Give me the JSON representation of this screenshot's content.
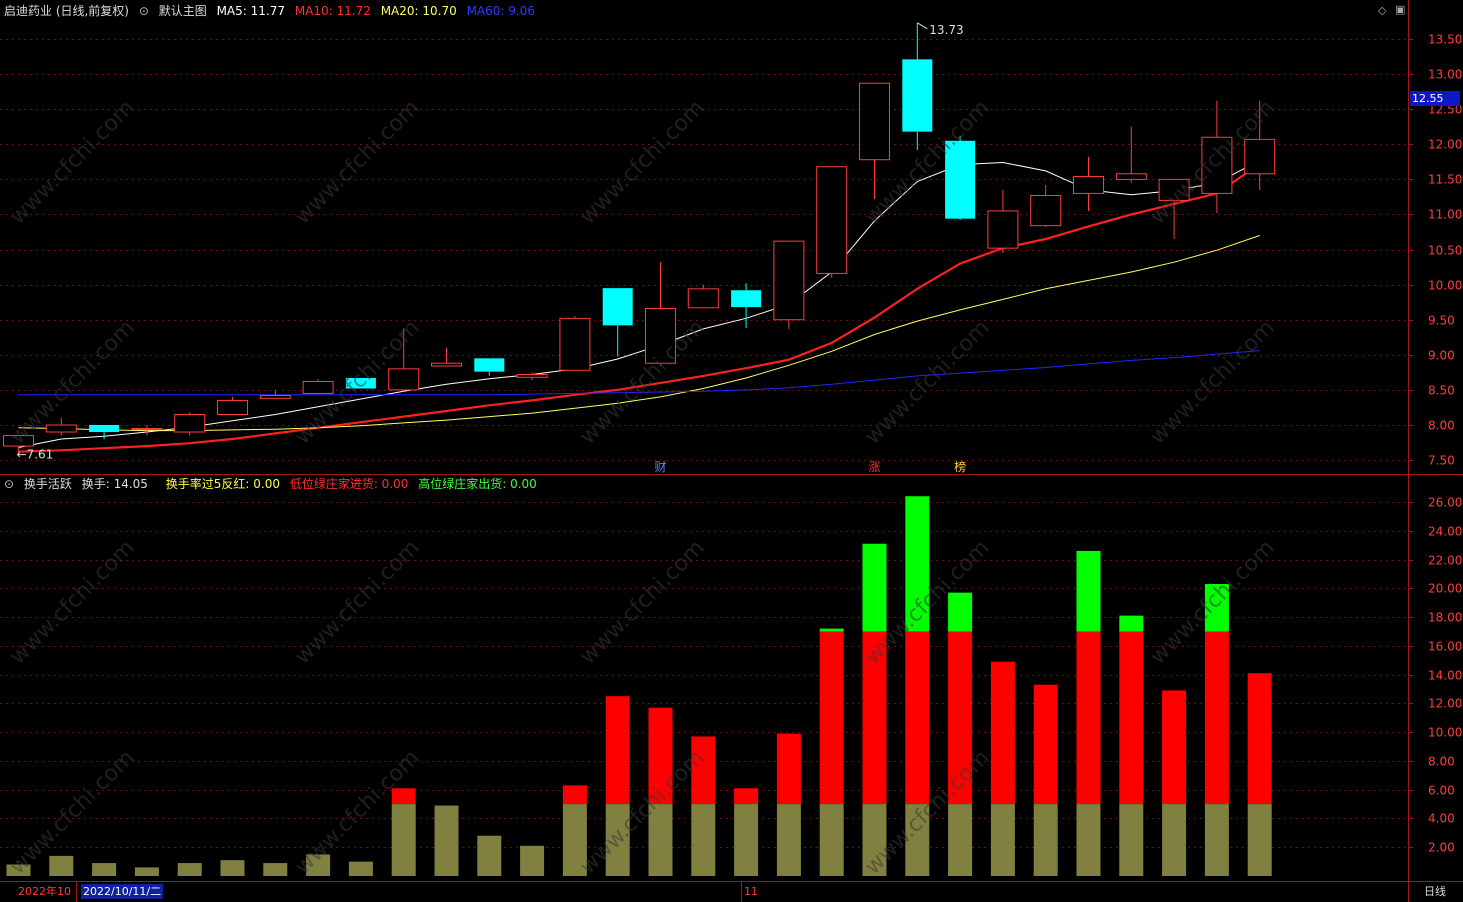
{
  "header": {
    "stock": "启迪药业 (日线,前复权)",
    "main_label": "默认主图",
    "ma5": "MA5: 11.77",
    "ma10": "MA10: 11.72",
    "ma20": "MA20: 10.70",
    "ma60": "MA60: 9.06"
  },
  "sub_header": {
    "name": "换手活跃",
    "turnover": "换手: 14.05",
    "item1": "换手率过5反红: 0.00",
    "item2": "低位绿庄家进货: 0.00",
    "item3": "高位绿庄家出货: 0.00"
  },
  "footer": {
    "year_month": "2022年10",
    "date": "2022/10/11/二",
    "month_nov": "11",
    "period": "日线"
  },
  "price_tag": "12.55",
  "watermark": "www.cfchi.com",
  "colors": {
    "up": "#ff3c3c",
    "down": "#00ffff",
    "ma5": "#ffffff",
    "ma10": "#ff2020",
    "ma20": "#ffff60",
    "ma60": "#1e28ff",
    "vol_base": "#808040",
    "vol_red": "#ff0000",
    "vol_green": "#00ff00"
  },
  "chart_data": [
    {
      "type": "candlestick",
      "title": "启迪药业 (日线,前复权)",
      "ylim": [
        7.3,
        13.8
      ],
      "y_ticks": [
        "13.50",
        "13.00",
        "12.50",
        "12.00",
        "11.50",
        "11.00",
        "10.50",
        "10.00",
        "9.50",
        "9.00",
        "8.50",
        "8.00",
        "7.50"
      ],
      "candles": [
        {
          "o": 7.7,
          "h": 7.8,
          "l": 7.61,
          "c": 7.85
        },
        {
          "o": 7.9,
          "h": 8.1,
          "l": 7.85,
          "c": 8.0
        },
        {
          "o": 8.0,
          "h": 8.0,
          "l": 7.8,
          "c": 7.9
        },
        {
          "o": 7.95,
          "h": 8.0,
          "l": 7.85,
          "c": 7.95
        },
        {
          "o": 7.9,
          "h": 8.18,
          "l": 7.85,
          "c": 8.15
        },
        {
          "o": 8.15,
          "h": 8.4,
          "l": 8.15,
          "c": 8.35
        },
        {
          "o": 8.38,
          "h": 8.5,
          "l": 8.37,
          "c": 8.42
        },
        {
          "o": 8.45,
          "h": 8.65,
          "l": 8.45,
          "c": 8.62
        },
        {
          "o": 8.67,
          "h": 8.67,
          "l": 8.52,
          "c": 8.52
        },
        {
          "o": 8.5,
          "h": 9.38,
          "l": 8.48,
          "c": 8.8
        },
        {
          "o": 8.84,
          "h": 9.1,
          "l": 8.84,
          "c": 8.88
        },
        {
          "o": 8.95,
          "h": 8.95,
          "l": 8.7,
          "c": 8.76
        },
        {
          "o": 8.68,
          "h": 8.75,
          "l": 8.64,
          "c": 8.72
        },
        {
          "o": 8.78,
          "h": 9.55,
          "l": 8.78,
          "c": 9.52
        },
        {
          "o": 9.95,
          "h": 9.95,
          "l": 8.98,
          "c": 9.42
        },
        {
          "o": 8.88,
          "h": 10.32,
          "l": 8.84,
          "c": 9.66
        },
        {
          "o": 9.67,
          "h": 10.0,
          "l": 9.67,
          "c": 9.94
        },
        {
          "o": 9.92,
          "h": 10.02,
          "l": 9.38,
          "c": 9.68
        },
        {
          "o": 9.5,
          "h": 10.62,
          "l": 9.37,
          "c": 10.62
        },
        {
          "o": 10.16,
          "h": 11.68,
          "l": 10.1,
          "c": 11.68
        },
        {
          "o": 11.78,
          "h": 12.87,
          "l": 11.22,
          "c": 12.87
        },
        {
          "o": 13.21,
          "h": 13.73,
          "l": 11.92,
          "c": 12.18
        },
        {
          "o": 12.05,
          "h": 12.12,
          "l": 10.92,
          "c": 10.94
        },
        {
          "o": 10.52,
          "h": 11.35,
          "l": 10.45,
          "c": 11.05
        },
        {
          "o": 10.84,
          "h": 11.42,
          "l": 10.82,
          "c": 11.27
        },
        {
          "o": 11.3,
          "h": 11.82,
          "l": 11.05,
          "c": 11.54
        },
        {
          "o": 11.5,
          "h": 12.25,
          "l": 11.45,
          "c": 11.58
        },
        {
          "o": 11.2,
          "h": 11.5,
          "l": 10.65,
          "c": 11.5
        },
        {
          "o": 11.3,
          "h": 12.62,
          "l": 11.02,
          "c": 12.1
        },
        {
          "o": 11.58,
          "h": 12.62,
          "l": 11.35,
          "c": 12.07
        }
      ],
      "series": [
        {
          "name": "MA5",
          "values": [
            7.68,
            7.8,
            7.84,
            7.9,
            7.97,
            8.06,
            8.15,
            8.26,
            8.37,
            8.48,
            8.58,
            8.66,
            8.72,
            8.8,
            8.94,
            9.14,
            9.37,
            9.52,
            9.72,
            10.18,
            10.91,
            11.47,
            11.71,
            11.74,
            11.62,
            11.35,
            11.28,
            11.34,
            11.45,
            11.77
          ]
        },
        {
          "name": "MA10",
          "values": [
            7.62,
            7.64,
            7.67,
            7.7,
            7.74,
            7.8,
            7.88,
            7.96,
            8.04,
            8.12,
            8.2,
            8.28,
            8.35,
            8.43,
            8.5,
            8.6,
            8.7,
            8.81,
            8.93,
            9.17,
            9.53,
            9.94,
            10.3,
            10.52,
            10.65,
            10.83,
            11.0,
            11.15,
            11.3,
            11.72
          ]
        },
        {
          "name": "MA20",
          "values": [
            7.96,
            7.95,
            7.93,
            7.92,
            7.92,
            7.93,
            7.94,
            7.96,
            7.99,
            8.03,
            8.07,
            8.12,
            8.17,
            8.24,
            8.31,
            8.4,
            8.52,
            8.67,
            8.85,
            9.05,
            9.29,
            9.48,
            9.64,
            9.79,
            9.94,
            10.06,
            10.18,
            10.32,
            10.49,
            10.7
          ]
        },
        {
          "name": "MA60",
          "values": [
            8.43,
            8.43,
            8.43,
            8.43,
            8.43,
            8.43,
            8.43,
            8.43,
            8.43,
            8.43,
            8.43,
            8.43,
            8.44,
            8.45,
            8.46,
            8.47,
            8.48,
            8.5,
            8.53,
            8.58,
            8.64,
            8.7,
            8.74,
            8.78,
            8.82,
            8.87,
            8.92,
            8.96,
            9.01,
            9.06
          ]
        }
      ],
      "annotations": [
        {
          "label": "13.73",
          "candle": 21
        },
        {
          "label": "7.61",
          "candle": 0
        },
        {
          "label": "财",
          "candle": 15
        },
        {
          "label": "涨",
          "candle": 20
        },
        {
          "label": "榜",
          "candle": 22
        }
      ]
    },
    {
      "type": "bar",
      "title": "换手活跃",
      "ylim": [
        0,
        27
      ],
      "y_ticks": [
        "26.00",
        "24.00",
        "22.00",
        "20.00",
        "18.00",
        "16.00",
        "14.00",
        "12.00",
        "10.00",
        "8.00",
        "6.00",
        "4.00",
        "2.00"
      ],
      "values": [
        0.8,
        1.4,
        0.9,
        0.6,
        0.9,
        1.1,
        0.9,
        1.5,
        1.0,
        6.1,
        4.9,
        2.8,
        2.1,
        6.3,
        12.5,
        11.7,
        9.7,
        6.1,
        9.9,
        17.2,
        23.1,
        26.4,
        19.7,
        14.9,
        13.3,
        22.6,
        18.1,
        12.9,
        20.3,
        14.1
      ],
      "thresholds": {
        "base": 5,
        "red_cap": 17
      }
    }
  ]
}
